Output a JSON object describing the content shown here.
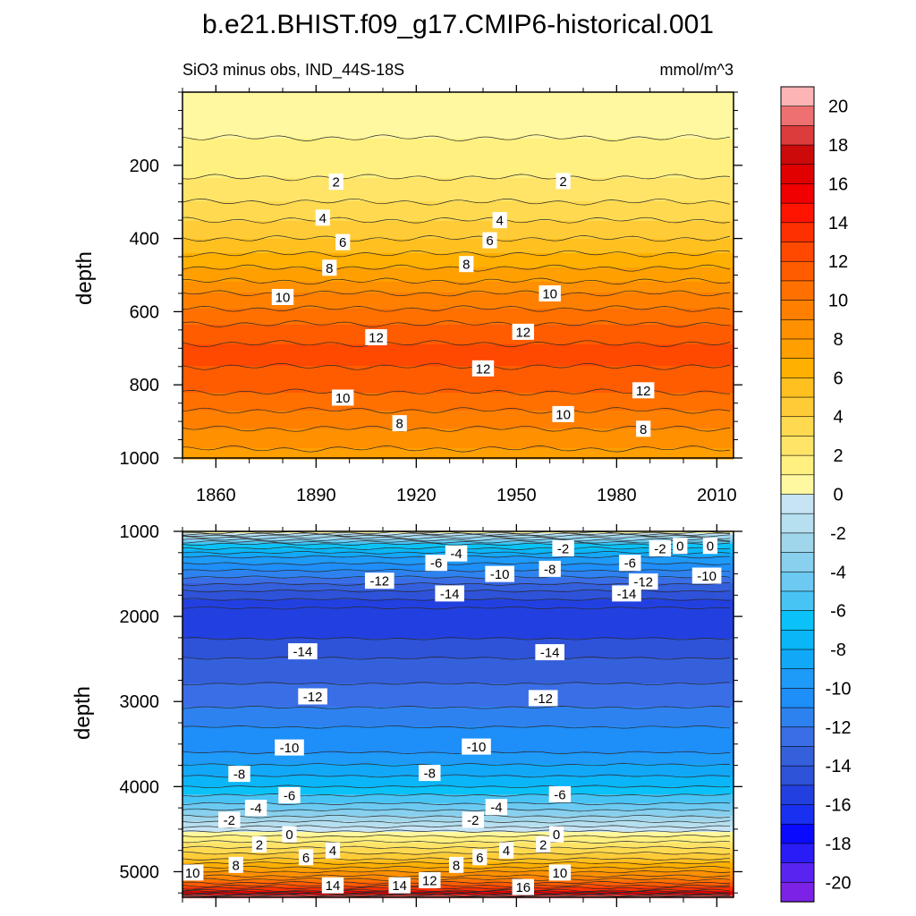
{
  "chart_data": {
    "type": "contour",
    "title": "b.e21.BHIST.f09_g17.CMIP6-historical.001",
    "subtitle_left": "SiO3 minus obs, IND_44S-18S",
    "subtitle_right": "mmol/m^3",
    "x": {
      "range": [
        1850,
        2015
      ],
      "ticks": [
        1860,
        1890,
        1920,
        1950,
        1980,
        2010
      ]
    },
    "panels": [
      {
        "name": "upper",
        "ylabel": "depth",
        "yrange": [
          0,
          1000
        ],
        "yticks": [
          200,
          400,
          600,
          800,
          1000
        ],
        "profile": [
          [
            0,
            0.3
          ],
          [
            100,
            0.8
          ],
          [
            200,
            1.6
          ],
          [
            250,
            2.2
          ],
          [
            300,
            3.0
          ],
          [
            350,
            4.0
          ],
          [
            400,
            5.0
          ],
          [
            450,
            6.2
          ],
          [
            500,
            7.5
          ],
          [
            550,
            9.0
          ],
          [
            600,
            10.2
          ],
          [
            650,
            11.4
          ],
          [
            700,
            12.2
          ],
          [
            750,
            12.0
          ],
          [
            800,
            11.4
          ],
          [
            850,
            10.4
          ],
          [
            900,
            9.4
          ],
          [
            950,
            8.4
          ],
          [
            1000,
            7.6
          ]
        ],
        "contour_labels": [
          {
            "text": "2",
            "x": 1896,
            "y": 245
          },
          {
            "text": "2",
            "x": 1964,
            "y": 243
          },
          {
            "text": "4",
            "x": 1892,
            "y": 343
          },
          {
            "text": "4",
            "x": 1945,
            "y": 350
          },
          {
            "text": "6",
            "x": 1898,
            "y": 410
          },
          {
            "text": "6",
            "x": 1942,
            "y": 405
          },
          {
            "text": "8",
            "x": 1894,
            "y": 480
          },
          {
            "text": "8",
            "x": 1935,
            "y": 470
          },
          {
            "text": "10",
            "x": 1880,
            "y": 560
          },
          {
            "text": "10",
            "x": 1960,
            "y": 550
          },
          {
            "text": "12",
            "x": 1908,
            "y": 670
          },
          {
            "text": "12",
            "x": 1952,
            "y": 655
          },
          {
            "text": "12",
            "x": 1940,
            "y": 755
          },
          {
            "text": "12",
            "x": 1988,
            "y": 815
          },
          {
            "text": "10",
            "x": 1898,
            "y": 835
          },
          {
            "text": "10",
            "x": 1964,
            "y": 880
          },
          {
            "text": "8",
            "x": 1915,
            "y": 905
          },
          {
            "text": "8",
            "x": 1988,
            "y": 920
          }
        ]
      },
      {
        "name": "lower",
        "ylabel": "depth",
        "yrange": [
          1000,
          5300
        ],
        "yticks": [
          1000,
          2000,
          3000,
          4000,
          5000
        ],
        "profile": [
          [
            1000,
            1
          ],
          [
            1050,
            -2
          ],
          [
            1150,
            -6
          ],
          [
            1300,
            -9
          ],
          [
            1500,
            -11.5
          ],
          [
            1700,
            -14
          ],
          [
            1900,
            -16
          ],
          [
            2100,
            -15.8
          ],
          [
            2400,
            -14.3
          ],
          [
            2700,
            -13.3
          ],
          [
            3000,
            -12.3
          ],
          [
            3300,
            -11
          ],
          [
            3600,
            -10
          ],
          [
            3800,
            -8.6
          ],
          [
            4000,
            -7
          ],
          [
            4200,
            -5
          ],
          [
            4350,
            -3
          ],
          [
            4450,
            -1.4
          ],
          [
            4550,
            0.5
          ],
          [
            4650,
            2
          ],
          [
            4750,
            3.5
          ],
          [
            4850,
            5
          ],
          [
            4950,
            7
          ],
          [
            5050,
            9
          ],
          [
            5150,
            11.5
          ],
          [
            5220,
            14
          ],
          [
            5260,
            17
          ],
          [
            5300,
            21
          ]
        ],
        "contour_labels": [
          {
            "text": "-2",
            "x": 1964,
            "y": 1200
          },
          {
            "text": "-2",
            "x": 1993,
            "y": 1200
          },
          {
            "text": "0",
            "x": 1999,
            "y": 1170
          },
          {
            "text": "0",
            "x": 2008,
            "y": 1170
          },
          {
            "text": "-4",
            "x": 1932,
            "y": 1260
          },
          {
            "text": "-6",
            "x": 1926,
            "y": 1370
          },
          {
            "text": "-6",
            "x": 1984,
            "y": 1370
          },
          {
            "text": "-8",
            "x": 1960,
            "y": 1440
          },
          {
            "text": "-10",
            "x": 1945,
            "y": 1500
          },
          {
            "text": "-10",
            "x": 2007,
            "y": 1520
          },
          {
            "text": "-12",
            "x": 1909,
            "y": 1580
          },
          {
            "text": "-12",
            "x": 1988,
            "y": 1590
          },
          {
            "text": "-14",
            "x": 1930,
            "y": 1730
          },
          {
            "text": "-14",
            "x": 1983,
            "y": 1730
          },
          {
            "text": "-14",
            "x": 1886,
            "y": 2410
          },
          {
            "text": "-14",
            "x": 1960,
            "y": 2420
          },
          {
            "text": "-12",
            "x": 1889,
            "y": 2940
          },
          {
            "text": "-12",
            "x": 1958,
            "y": 2960
          },
          {
            "text": "-10",
            "x": 1882,
            "y": 3540
          },
          {
            "text": "-10",
            "x": 1938,
            "y": 3530
          },
          {
            "text": "-8",
            "x": 1867,
            "y": 3850
          },
          {
            "text": "-8",
            "x": 1924,
            "y": 3840
          },
          {
            "text": "-6",
            "x": 1882,
            "y": 4100
          },
          {
            "text": "-6",
            "x": 1963,
            "y": 4090
          },
          {
            "text": "-4",
            "x": 1872,
            "y": 4250
          },
          {
            "text": "-4",
            "x": 1944,
            "y": 4240
          },
          {
            "text": "-2",
            "x": 1864,
            "y": 4390
          },
          {
            "text": "-2",
            "x": 1937,
            "y": 4390
          },
          {
            "text": "0",
            "x": 1882,
            "y": 4560
          },
          {
            "text": "0",
            "x": 1962,
            "y": 4560
          },
          {
            "text": "2",
            "x": 1873,
            "y": 4680
          },
          {
            "text": "2",
            "x": 1958,
            "y": 4680
          },
          {
            "text": "4",
            "x": 1895,
            "y": 4750
          },
          {
            "text": "4",
            "x": 1947,
            "y": 4750
          },
          {
            "text": "6",
            "x": 1887,
            "y": 4830
          },
          {
            "text": "6",
            "x": 1939,
            "y": 4830
          },
          {
            "text": "8",
            "x": 1866,
            "y": 4920
          },
          {
            "text": "8",
            "x": 1932,
            "y": 4920
          },
          {
            "text": "10",
            "x": 1853,
            "y": 5010
          },
          {
            "text": "10",
            "x": 1963,
            "y": 5010
          },
          {
            "text": "12",
            "x": 1924,
            "y": 5100
          },
          {
            "text": "14",
            "x": 1895,
            "y": 5160
          },
          {
            "text": "14",
            "x": 1915,
            "y": 5160
          },
          {
            "text": "16",
            "x": 1952,
            "y": 5180
          }
        ]
      }
    ],
    "colorbar": {
      "labels": [
        "20",
        "18",
        "16",
        "14",
        "12",
        "10",
        "8",
        "6",
        "4",
        "2",
        "0",
        "-2",
        "-4",
        "-6",
        "-8",
        "-10",
        "-12",
        "-14",
        "-16",
        "-18",
        "-20"
      ],
      "levels": [
        -21,
        -20,
        -19,
        -18,
        -17,
        -16,
        -15,
        -14,
        -13,
        -12,
        -11,
        -10,
        -9,
        -8,
        -7,
        -6,
        -5,
        -4,
        -3,
        -2,
        -1,
        0,
        1,
        2,
        3,
        4,
        5,
        6,
        7,
        8,
        9,
        10,
        11,
        12,
        13,
        14,
        15,
        16,
        17,
        18,
        19,
        20,
        21
      ],
      "colors": [
        "#7c22e6",
        "#5a24f0",
        "#2a1cf6",
        "#0a0aff",
        "#1a30f0",
        "#2240e0",
        "#2e52d8",
        "#3460dc",
        "#3a6ee6",
        "#2e82f0",
        "#1e8ef8",
        "#1e9af8",
        "#12a8f8",
        "#0ab6f8",
        "#0ac2f8",
        "#48c4f4",
        "#6ccaf2",
        "#88d0ee",
        "#a0d6ec",
        "#b6e0f0",
        "#c6e4f4",
        "#fff8a0",
        "#fff080",
        "#ffe468",
        "#ffda50",
        "#ffcc38",
        "#ffc020",
        "#ffb000",
        "#ffa000",
        "#ff9000",
        "#ff8000",
        "#ff7000",
        "#ff5c00",
        "#ff4800",
        "#ff3000",
        "#ff1400",
        "#f00000",
        "#e00000",
        "#cc0a0a",
        "#dc3c3c",
        "#ee7070",
        "#fcb4b4"
      ]
    }
  }
}
